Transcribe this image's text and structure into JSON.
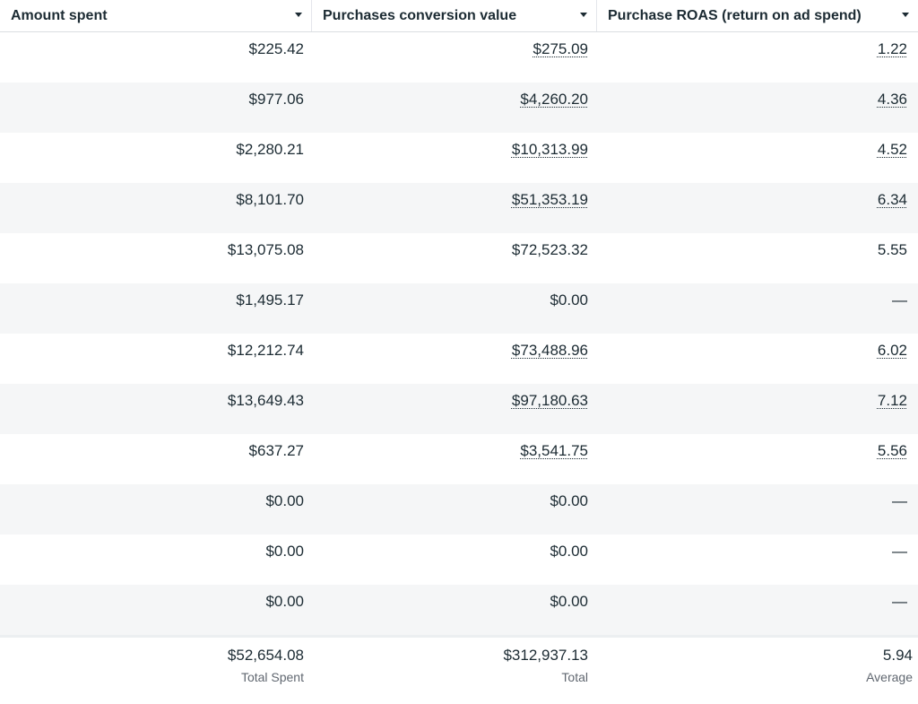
{
  "columns": [
    {
      "label": "Amount spent"
    },
    {
      "label": "Purchases conversion value"
    },
    {
      "label": "Purchase ROAS (return on ad spend)"
    }
  ],
  "rows": [
    {
      "spent": "$225.42",
      "value": "$275.09",
      "value_link": true,
      "roas": "1.22",
      "roas_link": true
    },
    {
      "spent": "$977.06",
      "value": "$4,260.20",
      "value_link": true,
      "roas": "4.36",
      "roas_link": true
    },
    {
      "spent": "$2,280.21",
      "value": "$10,313.99",
      "value_link": true,
      "roas": "4.52",
      "roas_link": true
    },
    {
      "spent": "$8,101.70",
      "value": "$51,353.19",
      "value_link": true,
      "roas": "6.34",
      "roas_link": true
    },
    {
      "spent": "$13,075.08",
      "value": "$72,523.32",
      "value_link": false,
      "roas": "5.55",
      "roas_link": false
    },
    {
      "spent": "$1,495.17",
      "value": "$0.00",
      "value_link": false,
      "roas": "—",
      "roas_link": false
    },
    {
      "spent": "$12,212.74",
      "value": "$73,488.96",
      "value_link": true,
      "roas": "6.02",
      "roas_link": true
    },
    {
      "spent": "$13,649.43",
      "value": "$97,180.63",
      "value_link": true,
      "roas": "7.12",
      "roas_link": true
    },
    {
      "spent": "$637.27",
      "value": "$3,541.75",
      "value_link": true,
      "roas": "5.56",
      "roas_link": true
    },
    {
      "spent": "$0.00",
      "value": "$0.00",
      "value_link": false,
      "roas": "—",
      "roas_link": false
    },
    {
      "spent": "$0.00",
      "value": "$0.00",
      "value_link": false,
      "roas": "—",
      "roas_link": false
    },
    {
      "spent": "$0.00",
      "value": "$0.00",
      "value_link": false,
      "roas": "—",
      "roas_link": false
    }
  ],
  "totals": {
    "spent": "$52,654.08",
    "spent_label": "Total Spent",
    "value": "$312,937.13",
    "value_label": "Total",
    "roas": "5.94",
    "roas_label": "Average"
  }
}
